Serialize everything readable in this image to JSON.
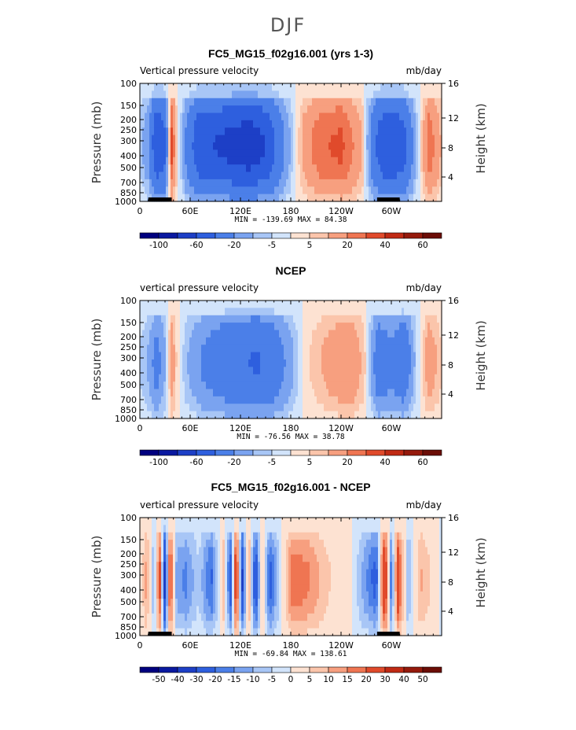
{
  "title": "DJF",
  "chart_data": [
    {
      "type": "heatmap",
      "title": "FC5_MG15_f02g16.001 (yrs 1-3)",
      "subtitle_left": "Vertical pressure velocity",
      "subtitle_right": "mb/day",
      "xlabel": "",
      "ylabel": "Pressure (mb)",
      "ylabel_right": "Height (km)",
      "xlim": [
        0,
        360
      ],
      "x_ticks": [
        "0",
        "60E",
        "120E",
        "180",
        "120W",
        "60W"
      ],
      "y_ticks": [
        "100",
        "150",
        "200",
        "250",
        "300",
        "400",
        "500",
        "700",
        "850",
        "1000"
      ],
      "y_ticks_right": [
        "16",
        "12",
        "8",
        "4"
      ],
      "stats": "MIN = -139.69   MAX =  84.38",
      "colorbar_labels": [
        "-100",
        "-60",
        "-20",
        "-5",
        "5",
        "20",
        "40",
        "60"
      ],
      "colorbar_levels": [
        -140,
        -100,
        -80,
        -60,
        -40,
        -20,
        -10,
        -5,
        0,
        5,
        10,
        20,
        30,
        40,
        60,
        80
      ],
      "longitude_profile": [
        {
          "lon": 0,
          "value": -6
        },
        {
          "lon": 10,
          "value": -15
        },
        {
          "lon": 20,
          "value": -55
        },
        {
          "lon": 30,
          "value": -40
        },
        {
          "lon": 38,
          "value": 30
        },
        {
          "lon": 45,
          "value": 3
        },
        {
          "lon": 55,
          "value": -20
        },
        {
          "lon": 70,
          "value": -50
        },
        {
          "lon": 90,
          "value": -55
        },
        {
          "lon": 110,
          "value": -60
        },
        {
          "lon": 130,
          "value": -65
        },
        {
          "lon": 150,
          "value": -55
        },
        {
          "lon": 170,
          "value": -22
        },
        {
          "lon": 180,
          "value": -8
        },
        {
          "lon": 195,
          "value": 12
        },
        {
          "lon": 215,
          "value": 25
        },
        {
          "lon": 240,
          "value": 30
        },
        {
          "lon": 265,
          "value": 10
        },
        {
          "lon": 280,
          "value": -35
        },
        {
          "lon": 295,
          "value": -55
        },
        {
          "lon": 315,
          "value": -45
        },
        {
          "lon": 330,
          "value": -8
        },
        {
          "lon": 345,
          "value": 25
        },
        {
          "lon": 360,
          "value": 8
        }
      ]
    },
    {
      "type": "heatmap",
      "title": "NCEP",
      "subtitle_left": "vertical pressure velocity",
      "subtitle_right": "mb/day",
      "xlabel": "",
      "ylabel": "Pressure (mb)",
      "ylabel_right": "Height (km)",
      "xlim": [
        0,
        360
      ],
      "x_ticks": [
        "0",
        "60E",
        "120E",
        "180",
        "120W",
        "60W"
      ],
      "y_ticks": [
        "100",
        "150",
        "200",
        "250",
        "300",
        "400",
        "500",
        "700",
        "850",
        "1000"
      ],
      "y_ticks_right": [
        "16",
        "12",
        "8",
        "4"
      ],
      "stats": "MIN = -76.56   MAX =  38.78",
      "colorbar_labels": [
        "-100",
        "-60",
        "-20",
        "-5",
        "5",
        "20",
        "40",
        "60"
      ],
      "colorbar_levels": [
        -140,
        -100,
        -80,
        -60,
        -40,
        -20,
        -10,
        -5,
        0,
        5,
        10,
        20,
        30,
        40,
        60,
        80
      ],
      "longitude_profile": [
        {
          "lon": 0,
          "value": -5
        },
        {
          "lon": 10,
          "value": -10
        },
        {
          "lon": 20,
          "value": -25
        },
        {
          "lon": 30,
          "value": -10
        },
        {
          "lon": 38,
          "value": 15
        },
        {
          "lon": 45,
          "value": 2
        },
        {
          "lon": 55,
          "value": -8
        },
        {
          "lon": 75,
          "value": -20
        },
        {
          "lon": 95,
          "value": -28
        },
        {
          "lon": 120,
          "value": -35
        },
        {
          "lon": 140,
          "value": -38
        },
        {
          "lon": 160,
          "value": -30
        },
        {
          "lon": 180,
          "value": -12
        },
        {
          "lon": 200,
          "value": 4
        },
        {
          "lon": 225,
          "value": 12
        },
        {
          "lon": 250,
          "value": 18
        },
        {
          "lon": 268,
          "value": 6
        },
        {
          "lon": 285,
          "value": -30
        },
        {
          "lon": 300,
          "value": -22
        },
        {
          "lon": 315,
          "value": -32
        },
        {
          "lon": 330,
          "value": -5
        },
        {
          "lon": 345,
          "value": 15
        },
        {
          "lon": 360,
          "value": 5
        }
      ]
    },
    {
      "type": "heatmap",
      "title": "FC5_MG15_f02g16.001 - NCEP",
      "subtitle_left": "vertical pressure velocity",
      "subtitle_right": "mb/day",
      "xlabel": "",
      "ylabel": "Pressure (mb)",
      "ylabel_right": "Height (km)",
      "xlim": [
        0,
        360
      ],
      "x_ticks": [
        "0",
        "60E",
        "120E",
        "180",
        "120W",
        "60W"
      ],
      "y_ticks": [
        "100",
        "150",
        "200",
        "250",
        "300",
        "400",
        "500",
        "700",
        "850",
        "1000"
      ],
      "y_ticks_right": [
        "16",
        "12",
        "8",
        "4"
      ],
      "stats": "MIN = -69.84   MAX = 138.61",
      "colorbar_labels": [
        "-50",
        "-40",
        "-30",
        "-20",
        "-15",
        "-10",
        "-5",
        "0",
        "5",
        "10",
        "15",
        "20",
        "30",
        "40",
        "50"
      ],
      "colorbar_levels": [
        -60,
        -50,
        -40,
        -30,
        -20,
        -15,
        -10,
        -5,
        0,
        5,
        10,
        15,
        20,
        30,
        40,
        50
      ],
      "longitude_profile": [
        {
          "lon": 0,
          "value": -2
        },
        {
          "lon": 8,
          "value": 12
        },
        {
          "lon": 16,
          "value": -8
        },
        {
          "lon": 24,
          "value": 20
        },
        {
          "lon": 30,
          "value": -35
        },
        {
          "lon": 36,
          "value": 25
        },
        {
          "lon": 44,
          "value": -12
        },
        {
          "lon": 55,
          "value": -15
        },
        {
          "lon": 70,
          "value": -5
        },
        {
          "lon": 85,
          "value": -20
        },
        {
          "lon": 100,
          "value": 8
        },
        {
          "lon": 108,
          "value": -25
        },
        {
          "lon": 115,
          "value": 30
        },
        {
          "lon": 122,
          "value": -30
        },
        {
          "lon": 130,
          "value": 12
        },
        {
          "lon": 138,
          "value": -28
        },
        {
          "lon": 146,
          "value": 8
        },
        {
          "lon": 155,
          "value": -22
        },
        {
          "lon": 168,
          "value": -3
        },
        {
          "lon": 182,
          "value": 18
        },
        {
          "lon": 200,
          "value": 15
        },
        {
          "lon": 225,
          "value": 5
        },
        {
          "lon": 250,
          "value": 2
        },
        {
          "lon": 268,
          "value": -12
        },
        {
          "lon": 282,
          "value": -22
        },
        {
          "lon": 292,
          "value": 32
        },
        {
          "lon": 300,
          "value": -18
        },
        {
          "lon": 308,
          "value": 25
        },
        {
          "lon": 320,
          "value": -10
        },
        {
          "lon": 335,
          "value": 10
        },
        {
          "lon": 350,
          "value": 3
        },
        {
          "lon": 360,
          "value": -2
        }
      ]
    }
  ]
}
